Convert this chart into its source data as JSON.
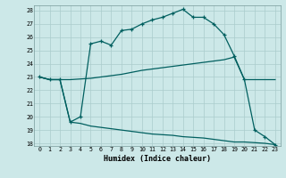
{
  "xlabel": "Humidex (Indice chaleur)",
  "bg_color": "#cce8e8",
  "grid_color": "#aacccc",
  "line_color": "#005f5f",
  "xlim": [
    -0.5,
    23.5
  ],
  "ylim": [
    17.8,
    28.4
  ],
  "yticks": [
    18,
    19,
    20,
    21,
    22,
    23,
    24,
    25,
    26,
    27,
    28
  ],
  "xticks": [
    0,
    1,
    2,
    3,
    4,
    5,
    6,
    7,
    8,
    9,
    10,
    11,
    12,
    13,
    14,
    15,
    16,
    17,
    18,
    19,
    20,
    21,
    22,
    23
  ],
  "line1_x": [
    0,
    1,
    2,
    3,
    4,
    5,
    6,
    7,
    8,
    9,
    10,
    11,
    12,
    13,
    14,
    15,
    16,
    17,
    18,
    19,
    20,
    21,
    22,
    23
  ],
  "line1_y": [
    23.0,
    22.8,
    22.8,
    19.6,
    20.0,
    25.5,
    25.7,
    25.4,
    26.5,
    26.6,
    27.0,
    27.3,
    27.5,
    27.8,
    28.1,
    27.5,
    27.5,
    27.0,
    26.2,
    24.6,
    22.8,
    19.0,
    18.5,
    17.9
  ],
  "line2_x": [
    0,
    1,
    2,
    3,
    4,
    5,
    6,
    7,
    8,
    9,
    10,
    11,
    12,
    13,
    14,
    15,
    16,
    17,
    18,
    19,
    20,
    21,
    22,
    23
  ],
  "line2_y": [
    23.0,
    22.8,
    22.8,
    22.8,
    22.85,
    22.9,
    23.0,
    23.1,
    23.2,
    23.35,
    23.5,
    23.6,
    23.7,
    23.8,
    23.9,
    24.0,
    24.1,
    24.2,
    24.3,
    24.5,
    22.8,
    22.8,
    22.8,
    22.8
  ],
  "line3_x": [
    0,
    1,
    2,
    3,
    4,
    5,
    6,
    7,
    8,
    9,
    10,
    11,
    12,
    13,
    14,
    15,
    16,
    17,
    18,
    19,
    20,
    21,
    22,
    23
  ],
  "line3_y": [
    23.0,
    22.8,
    22.8,
    19.6,
    19.5,
    19.3,
    19.2,
    19.1,
    19.0,
    18.9,
    18.8,
    18.7,
    18.65,
    18.6,
    18.5,
    18.45,
    18.4,
    18.3,
    18.2,
    18.1,
    18.1,
    18.05,
    18.0,
    17.9
  ]
}
